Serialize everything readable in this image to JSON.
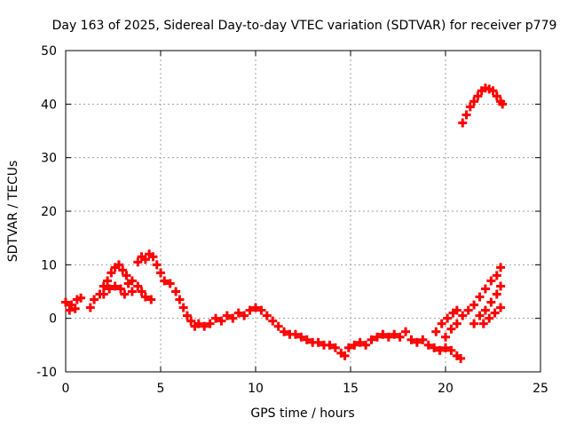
{
  "chart_data": {
    "type": "scatter",
    "title": "Day 163 of 2025, Sidereal Day-to-day VTEC variation (SDTVAR) for receiver p779",
    "xlabel": "GPS time / hours",
    "ylabel": "SDTVAR / TECUs",
    "xlim": [
      0,
      25
    ],
    "ylim": [
      -10,
      50
    ],
    "xticks": [
      "0",
      "5",
      "10",
      "15",
      "20",
      "25"
    ],
    "yticks": [
      "-10",
      "0",
      "10",
      "20",
      "30",
      "40",
      "50"
    ],
    "grid": true,
    "marker": "plus",
    "color": "#ff0000",
    "series": [
      {
        "name": "SDTVAR",
        "points": [
          [
            0.0,
            3.0
          ],
          [
            0.3,
            2.5
          ],
          [
            0.6,
            3.5
          ],
          [
            0.8,
            3.8
          ],
          [
            0.2,
            1.5
          ],
          [
            0.5,
            1.8
          ],
          [
            1.3,
            2.0
          ],
          [
            1.5,
            3.5
          ],
          [
            1.8,
            4.5
          ],
          [
            2.0,
            6.0
          ],
          [
            2.2,
            7.0
          ],
          [
            2.4,
            8.5
          ],
          [
            2.6,
            9.5
          ],
          [
            2.8,
            10.0
          ],
          [
            3.0,
            9.0
          ],
          [
            3.2,
            8.0
          ],
          [
            3.3,
            6.5
          ],
          [
            3.5,
            5.0
          ],
          [
            2.0,
            4.5
          ],
          [
            2.3,
            5.5
          ],
          [
            2.6,
            6.0
          ],
          [
            2.9,
            5.5
          ],
          [
            3.1,
            4.5
          ],
          [
            3.5,
            7.0
          ],
          [
            3.8,
            6.0
          ],
          [
            4.0,
            5.0
          ],
          [
            4.2,
            4.0
          ],
          [
            4.5,
            3.5
          ],
          [
            3.8,
            10.5
          ],
          [
            4.0,
            11.5
          ],
          [
            4.2,
            11.0
          ],
          [
            4.4,
            12.0
          ],
          [
            4.6,
            11.5
          ],
          [
            4.8,
            10.0
          ],
          [
            5.0,
            8.5
          ],
          [
            5.2,
            7.0
          ],
          [
            5.5,
            6.5
          ],
          [
            5.8,
            5.0
          ],
          [
            6.0,
            3.5
          ],
          [
            6.2,
            2.0
          ],
          [
            6.4,
            0.5
          ],
          [
            6.6,
            -0.5
          ],
          [
            6.8,
            -1.5
          ],
          [
            7.0,
            -1.0
          ],
          [
            7.3,
            -1.5
          ],
          [
            7.6,
            -1.0
          ],
          [
            7.9,
            0.0
          ],
          [
            8.2,
            -0.5
          ],
          [
            8.5,
            0.5
          ],
          [
            8.8,
            0.0
          ],
          [
            9.1,
            1.0
          ],
          [
            9.4,
            0.5
          ],
          [
            9.7,
            1.5
          ],
          [
            10.0,
            2.0
          ],
          [
            10.3,
            1.5
          ],
          [
            10.6,
            0.5
          ],
          [
            10.9,
            -0.5
          ],
          [
            11.2,
            -1.5
          ],
          [
            11.5,
            -2.5
          ],
          [
            11.8,
            -3.0
          ],
          [
            12.1,
            -3.0
          ],
          [
            12.4,
            -3.5
          ],
          [
            12.7,
            -4.0
          ],
          [
            13.0,
            -4.5
          ],
          [
            13.3,
            -4.5
          ],
          [
            13.6,
            -5.0
          ],
          [
            13.9,
            -5.0
          ],
          [
            14.2,
            -5.5
          ],
          [
            14.5,
            -6.5
          ],
          [
            14.7,
            -7.0
          ],
          [
            14.9,
            -5.5
          ],
          [
            15.2,
            -5.0
          ],
          [
            15.5,
            -4.5
          ],
          [
            15.8,
            -5.0
          ],
          [
            16.1,
            -4.0
          ],
          [
            16.4,
            -3.5
          ],
          [
            16.7,
            -3.0
          ],
          [
            17.0,
            -3.5
          ],
          [
            17.3,
            -3.0
          ],
          [
            17.6,
            -3.5
          ],
          [
            17.9,
            -2.5
          ],
          [
            18.2,
            -4.0
          ],
          [
            18.5,
            -4.5
          ],
          [
            18.8,
            -4.0
          ],
          [
            19.1,
            -5.0
          ],
          [
            19.4,
            -5.5
          ],
          [
            19.7,
            -6.0
          ],
          [
            20.0,
            -5.5
          ],
          [
            20.3,
            -6.0
          ],
          [
            20.6,
            -7.0
          ],
          [
            20.8,
            -7.5
          ],
          [
            20.0,
            -3.5
          ],
          [
            20.3,
            -2.0
          ],
          [
            20.6,
            -1.0
          ],
          [
            20.9,
            0.5
          ],
          [
            21.2,
            1.5
          ],
          [
            21.5,
            2.5
          ],
          [
            21.8,
            4.0
          ],
          [
            22.1,
            5.5
          ],
          [
            22.4,
            7.0
          ],
          [
            22.7,
            8.0
          ],
          [
            22.9,
            9.5
          ],
          [
            21.5,
            -1.0
          ],
          [
            21.8,
            0.5
          ],
          [
            22.1,
            1.5
          ],
          [
            22.4,
            3.0
          ],
          [
            22.7,
            4.5
          ],
          [
            22.9,
            6.0
          ],
          [
            22.0,
            -1.0
          ],
          [
            22.3,
            0.0
          ],
          [
            22.6,
            1.0
          ],
          [
            22.9,
            2.0
          ],
          [
            19.5,
            -2.5
          ],
          [
            19.8,
            -1.0
          ],
          [
            20.1,
            0.0
          ],
          [
            20.4,
            1.0
          ],
          [
            20.6,
            1.5
          ],
          [
            20.9,
            36.5
          ],
          [
            21.1,
            38.0
          ],
          [
            21.3,
            39.5
          ],
          [
            21.5,
            40.5
          ],
          [
            21.7,
            41.5
          ],
          [
            21.9,
            42.5
          ],
          [
            22.1,
            43.0
          ],
          [
            22.3,
            42.8
          ],
          [
            22.5,
            42.5
          ],
          [
            22.7,
            41.5
          ],
          [
            22.9,
            40.5
          ],
          [
            23.0,
            40.0
          ]
        ]
      }
    ]
  }
}
